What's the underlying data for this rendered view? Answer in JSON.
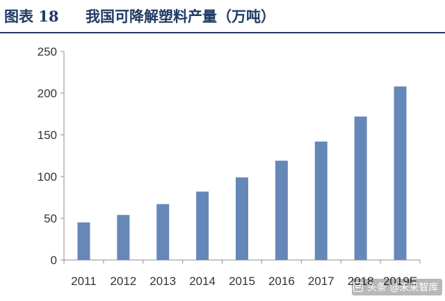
{
  "header": {
    "figure_label": "图表 18",
    "title": "我国可降解塑料产量（万吨）"
  },
  "colors": {
    "bar": "#6688b8",
    "title": "#1f3a64",
    "axis": "#8c8c8c"
  },
  "chart_data": {
    "type": "bar",
    "title": "我国可降解塑料产量（万吨）",
    "xlabel": "",
    "ylabel": "",
    "categories": [
      "2011",
      "2012",
      "2013",
      "2014",
      "2015",
      "2016",
      "2017",
      "2018",
      "2019E"
    ],
    "values": [
      45,
      54,
      67,
      82,
      99,
      119,
      142,
      172,
      208
    ],
    "ylim": [
      0,
      250
    ],
    "yticks": [
      0,
      50,
      100,
      150,
      200,
      250
    ],
    "grid": false,
    "legend": "none"
  },
  "watermark": {
    "text": "头条 @未来智库",
    "icon": "toutiao-logo-icon"
  }
}
